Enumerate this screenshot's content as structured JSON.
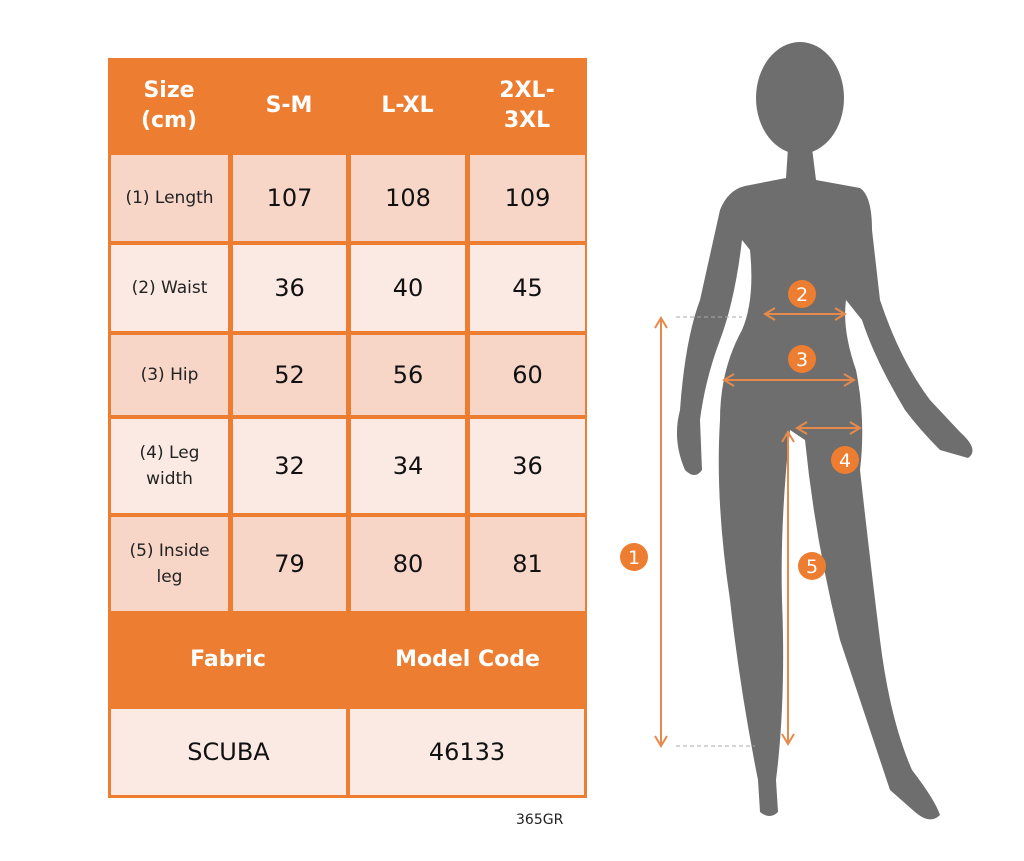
{
  "colors": {
    "accent": "#ED7D31",
    "cell_dark": "#F7D6C8",
    "cell_light": "#FBEAE3",
    "silhouette": "#6E6E6E"
  },
  "table": {
    "header": [
      "Size (cm)",
      "S-M",
      "L-XL",
      "2XL-3XL"
    ],
    "rows": [
      {
        "label": "(1) Length",
        "values": [
          "107",
          "108",
          "109"
        ]
      },
      {
        "label": "(2) Waist",
        "values": [
          "36",
          "40",
          "45"
        ]
      },
      {
        "label": "(3) Hip",
        "values": [
          "52",
          "56",
          "60"
        ]
      },
      {
        "label": "(4) Leg width",
        "values": [
          "32",
          "34",
          "36"
        ]
      },
      {
        "label": "(5) Inside leg",
        "values": [
          "79",
          "80",
          "81"
        ]
      }
    ],
    "footer_header": [
      "Fabric",
      "Model Code"
    ],
    "footer_values": [
      "SCUBA",
      "46133"
    ]
  },
  "figure": {
    "markers": [
      "1",
      "2",
      "3",
      "4",
      "5"
    ],
    "icon": "female-silhouette-icon"
  },
  "product_code": "365GR"
}
